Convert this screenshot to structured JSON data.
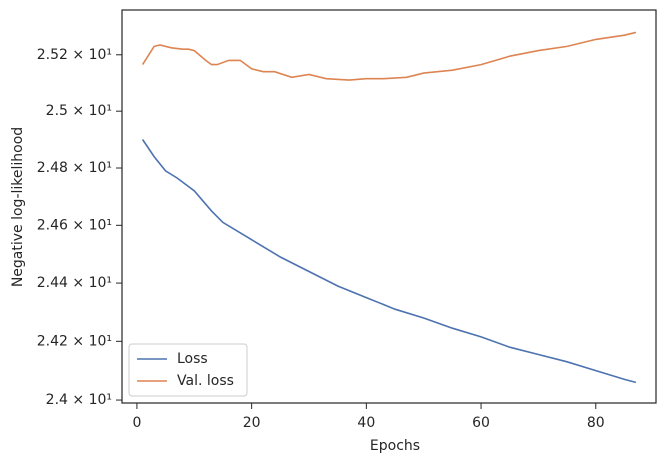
{
  "chart_data": {
    "type": "line",
    "xlabel": "Epochs",
    "ylabel": "Negative log-likelihood",
    "xlim": [
      -2.6,
      90.5
    ],
    "xticks": [
      0,
      20,
      40,
      60,
      80
    ],
    "ylim": [
      23.99,
      25.36
    ],
    "log_y": true,
    "yticks": [
      {
        "value": 24.0,
        "label": "2.4 × 10¹"
      },
      {
        "value": 24.2,
        "label": "2.42 × 10¹"
      },
      {
        "value": 24.4,
        "label": "2.44 × 10¹"
      },
      {
        "value": 24.6,
        "label": "2.46 × 10¹"
      },
      {
        "value": 24.8,
        "label": "2.48 × 10¹"
      },
      {
        "value": 25.0,
        "label": "2.5 × 10¹"
      },
      {
        "value": 25.2,
        "label": "2.52 × 10¹"
      }
    ],
    "legend": "lower left",
    "series": [
      {
        "name": "Loss",
        "color": "#4c72b0",
        "x": [
          1,
          3,
          5,
          7,
          10,
          13,
          15,
          20,
          25,
          30,
          35,
          40,
          45,
          50,
          55,
          60,
          65,
          70,
          75,
          80,
          85,
          87
        ],
        "values": [
          24.9,
          24.84,
          24.79,
          24.765,
          24.72,
          24.65,
          24.61,
          24.55,
          24.49,
          24.44,
          24.39,
          24.35,
          24.31,
          24.28,
          24.245,
          24.215,
          24.18,
          24.155,
          24.13,
          24.1,
          24.07,
          24.06
        ]
      },
      {
        "name": "Val. loss",
        "color": "#dd8452",
        "x": [
          1,
          3,
          4,
          6,
          8,
          9,
          10,
          12,
          13,
          14,
          16,
          17,
          18,
          20,
          22,
          24,
          27,
          30,
          33,
          37,
          40,
          43,
          47,
          50,
          55,
          60,
          65,
          70,
          75,
          80,
          85,
          87
        ],
        "values": [
          25.165,
          25.23,
          25.235,
          25.225,
          25.22,
          25.22,
          25.215,
          25.18,
          25.165,
          25.165,
          25.18,
          25.18,
          25.18,
          25.15,
          25.14,
          25.14,
          25.12,
          25.13,
          25.115,
          25.11,
          25.115,
          25.115,
          25.12,
          25.135,
          25.145,
          25.165,
          25.195,
          25.215,
          25.23,
          25.255,
          25.27,
          25.28
        ]
      }
    ]
  }
}
